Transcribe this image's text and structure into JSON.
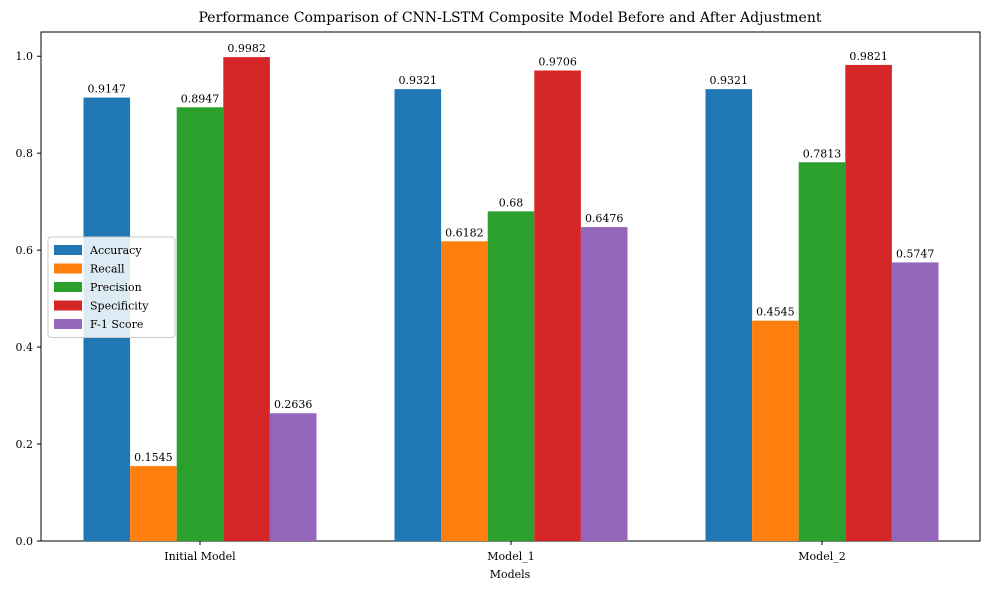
{
  "chart_data": {
    "type": "bar",
    "title": "Performance Comparison of CNN-LSTM Composite Model Before and After Adjustment",
    "xlabel": "Models",
    "ylabel": "",
    "categories": [
      "Initial Model",
      "Model_1",
      "Model_2"
    ],
    "ylim": [
      0,
      1.05
    ],
    "yticks": [
      "0.0",
      "0.2",
      "0.4",
      "0.6",
      "0.8",
      "1.0"
    ],
    "legend_position": "center-left",
    "series": [
      {
        "name": "Accuracy",
        "color": "#1f77b4",
        "values": [
          0.9147,
          0.9321,
          0.9321
        ],
        "labels": [
          "0.9147",
          "0.9321",
          "0.9321"
        ]
      },
      {
        "name": "Recall",
        "color": "#ff7f0e",
        "values": [
          0.1545,
          0.6182,
          0.4545
        ],
        "labels": [
          "0.1545",
          "0.6182",
          "0.4545"
        ]
      },
      {
        "name": "Precision",
        "color": "#2ca02c",
        "values": [
          0.8947,
          0.68,
          0.7813
        ],
        "labels": [
          "0.8947",
          "0.68",
          "0.7813"
        ]
      },
      {
        "name": "Specificity",
        "color": "#d62728",
        "values": [
          0.9982,
          0.9706,
          0.9821
        ],
        "labels": [
          "0.9982",
          "0.9706",
          "0.9821"
        ]
      },
      {
        "name": "F-1 Score",
        "color": "#9467bd",
        "values": [
          0.2636,
          0.6476,
          0.5747
        ],
        "labels": [
          "0.2636",
          "0.6476",
          "0.5747"
        ]
      }
    ]
  }
}
